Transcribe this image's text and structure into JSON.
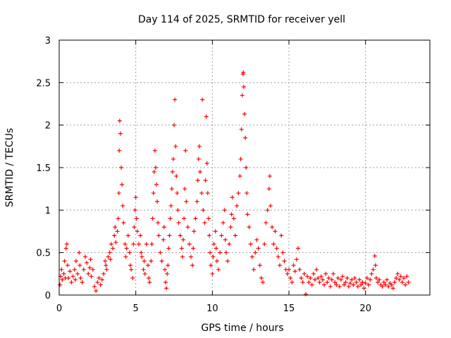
{
  "chart_data": {
    "type": "scatter",
    "title": "Day 114 of 2025, SRMTID for receiver yell",
    "xlabel": "GPS time / hours",
    "ylabel": "SRMTID / TECUs",
    "xlim": [
      0,
      24.2
    ],
    "ylim": [
      0,
      3
    ],
    "xticks": [
      0,
      5,
      10,
      15,
      20
    ],
    "yticks": [
      0,
      0.5,
      1,
      1.5,
      2,
      2.5,
      3
    ],
    "ytick_labels": [
      "0",
      "0.5",
      "1",
      "1.5",
      "2",
      "2.5",
      "3"
    ],
    "grid": true,
    "marker": "+",
    "color": "#ff0000",
    "series": [
      {
        "name": "SRMTID",
        "points": [
          [
            0.05,
            0.12
          ],
          [
            0.1,
            0.22
          ],
          [
            0.15,
            0.3
          ],
          [
            0.2,
            0.18
          ],
          [
            0.3,
            0.25
          ],
          [
            0.35,
            0.4
          ],
          [
            0.4,
            0.2
          ],
          [
            0.45,
            0.55
          ],
          [
            0.5,
            0.6
          ],
          [
            0.55,
            0.35
          ],
          [
            0.6,
            0.2
          ],
          [
            0.7,
            0.28
          ],
          [
            0.8,
            0.15
          ],
          [
            0.9,
            0.22
          ],
          [
            1.0,
            0.3
          ],
          [
            1.05,
            0.18
          ],
          [
            1.1,
            0.4
          ],
          [
            1.2,
            0.25
          ],
          [
            1.3,
            0.5
          ],
          [
            1.35,
            0.35
          ],
          [
            1.4,
            0.2
          ],
          [
            1.5,
            0.15
          ],
          [
            1.6,
            0.3
          ],
          [
            1.7,
            0.45
          ],
          [
            1.8,
            0.38
          ],
          [
            1.9,
            0.25
          ],
          [
            2.0,
            0.32
          ],
          [
            2.05,
            0.42
          ],
          [
            2.1,
            0.22
          ],
          [
            2.2,
            0.3
          ],
          [
            2.3,
            0.1
          ],
          [
            2.4,
            0.05
          ],
          [
            2.5,
            0.15
          ],
          [
            2.6,
            0.2
          ],
          [
            2.7,
            0.12
          ],
          [
            2.8,
            0.18
          ],
          [
            2.9,
            0.25
          ],
          [
            3.0,
            0.4
          ],
          [
            3.05,
            0.35
          ],
          [
            3.1,
            0.3
          ],
          [
            3.2,
            0.45
          ],
          [
            3.3,
            0.5
          ],
          [
            3.35,
            0.42
          ],
          [
            3.4,
            0.6
          ],
          [
            3.5,
            0.55
          ],
          [
            3.6,
            0.7
          ],
          [
            3.65,
            0.8
          ],
          [
            3.7,
            0.62
          ],
          [
            3.8,
            0.75
          ],
          [
            3.85,
            0.9
          ],
          [
            3.9,
            1.2
          ],
          [
            3.92,
            1.7
          ],
          [
            3.95,
            2.05
          ],
          [
            4.0,
            1.9
          ],
          [
            4.05,
            1.5
          ],
          [
            4.1,
            1.3
          ],
          [
            4.15,
            1.05
          ],
          [
            4.2,
            0.85
          ],
          [
            4.3,
            0.6
          ],
          [
            4.35,
            0.45
          ],
          [
            4.4,
            0.55
          ],
          [
            4.5,
            0.7
          ],
          [
            4.6,
            0.5
          ],
          [
            4.65,
            0.35
          ],
          [
            4.7,
            0.3
          ],
          [
            4.8,
            0.2
          ],
          [
            4.85,
            0.6
          ],
          [
            4.9,
            0.8
          ],
          [
            4.95,
            1.0
          ],
          [
            5.0,
            1.15
          ],
          [
            5.05,
            0.9
          ],
          [
            5.1,
            0.75
          ],
          [
            5.2,
            0.6
          ],
          [
            5.3,
            0.7
          ],
          [
            5.35,
            0.5
          ],
          [
            5.4,
            0.45
          ],
          [
            5.5,
            0.3
          ],
          [
            5.55,
            0.4
          ],
          [
            5.6,
            0.25
          ],
          [
            5.7,
            0.6
          ],
          [
            5.8,
            0.35
          ],
          [
            5.85,
            0.2
          ],
          [
            5.9,
            0.15
          ],
          [
            6.0,
            0.4
          ],
          [
            6.05,
            0.6
          ],
          [
            6.1,
            0.9
          ],
          [
            6.15,
            1.2
          ],
          [
            6.2,
            1.45
          ],
          [
            6.25,
            1.7
          ],
          [
            6.3,
            1.5
          ],
          [
            6.35,
            1.3
          ],
          [
            6.4,
            1.1
          ],
          [
            6.45,
            0.85
          ],
          [
            6.5,
            0.7
          ],
          [
            6.6,
            0.5
          ],
          [
            6.7,
            0.4
          ],
          [
            6.8,
            0.65
          ],
          [
            6.85,
            0.8
          ],
          [
            6.9,
            0.3
          ],
          [
            6.95,
            0.15
          ],
          [
            7.0,
            0.08
          ],
          [
            7.05,
            0.25
          ],
          [
            7.1,
            0.35
          ],
          [
            7.15,
            0.55
          ],
          [
            7.2,
            0.7
          ],
          [
            7.25,
            0.9
          ],
          [
            7.3,
            1.05
          ],
          [
            7.35,
            1.25
          ],
          [
            7.4,
            1.45
          ],
          [
            7.45,
            1.6
          ],
          [
            7.5,
            2.0
          ],
          [
            7.55,
            2.3
          ],
          [
            7.6,
            1.75
          ],
          [
            7.65,
            1.4
          ],
          [
            7.7,
            1.2
          ],
          [
            7.75,
            1.0
          ],
          [
            7.8,
            0.85
          ],
          [
            7.9,
            0.7
          ],
          [
            8.0,
            0.55
          ],
          [
            8.05,
            0.45
          ],
          [
            8.1,
            0.65
          ],
          [
            8.15,
            0.9
          ],
          [
            8.2,
            1.25
          ],
          [
            8.25,
            1.7
          ],
          [
            8.3,
            1.1
          ],
          [
            8.4,
            0.8
          ],
          [
            8.5,
            0.6
          ],
          [
            8.6,
            0.45
          ],
          [
            8.7,
            0.35
          ],
          [
            8.75,
            0.55
          ],
          [
            8.8,
            0.75
          ],
          [
            8.9,
            0.9
          ],
          [
            9.0,
            1.1
          ],
          [
            9.05,
            1.35
          ],
          [
            9.1,
            1.6
          ],
          [
            9.15,
            1.75
          ],
          [
            9.2,
            1.45
          ],
          [
            9.3,
            1.2
          ],
          [
            9.35,
            2.3
          ],
          [
            9.4,
            1.0
          ],
          [
            9.5,
            0.85
          ],
          [
            9.55,
            1.35
          ],
          [
            9.6,
            2.1
          ],
          [
            9.65,
            1.55
          ],
          [
            9.7,
            1.2
          ],
          [
            9.75,
            0.9
          ],
          [
            9.8,
            0.7
          ],
          [
            9.85,
            0.5
          ],
          [
            9.9,
            0.35
          ],
          [
            10.0,
            0.25
          ],
          [
            10.05,
            0.45
          ],
          [
            10.1,
            0.6
          ],
          [
            10.2,
            0.75
          ],
          [
            10.25,
            0.55
          ],
          [
            10.3,
            0.4
          ],
          [
            10.4,
            0.3
          ],
          [
            10.5,
            0.5
          ],
          [
            10.6,
            0.7
          ],
          [
            10.7,
            0.85
          ],
          [
            10.8,
            1.0
          ],
          [
            10.85,
            0.65
          ],
          [
            10.9,
            0.5
          ],
          [
            11.0,
            0.4
          ],
          [
            11.1,
            0.6
          ],
          [
            11.2,
            0.8
          ],
          [
            11.25,
            0.95
          ],
          [
            11.3,
            1.15
          ],
          [
            11.4,
            0.9
          ],
          [
            11.5,
            0.7
          ],
          [
            11.6,
            1.05
          ],
          [
            11.7,
            1.2
          ],
          [
            11.8,
            1.4
          ],
          [
            11.85,
            1.6
          ],
          [
            11.9,
            1.95
          ],
          [
            11.95,
            2.35
          ],
          [
            12.0,
            2.6
          ],
          [
            12.02,
            2.62
          ],
          [
            12.05,
            2.45
          ],
          [
            12.1,
            2.13
          ],
          [
            12.15,
            1.85
          ],
          [
            12.2,
            1.5
          ],
          [
            12.25,
            1.2
          ],
          [
            12.3,
            0.95
          ],
          [
            12.4,
            0.8
          ],
          [
            12.5,
            0.6
          ],
          [
            12.6,
            0.45
          ],
          [
            12.7,
            0.3
          ],
          [
            12.8,
            0.5
          ],
          [
            12.9,
            0.65
          ],
          [
            13.0,
            0.55
          ],
          [
            13.1,
            0.35
          ],
          [
            13.2,
            0.2
          ],
          [
            13.3,
            0.15
          ],
          [
            13.4,
            0.6
          ],
          [
            13.5,
            0.85
          ],
          [
            13.6,
            1.0
          ],
          [
            13.7,
            1.25
          ],
          [
            13.75,
            1.4
          ],
          [
            13.8,
            1.05
          ],
          [
            13.9,
            0.8
          ],
          [
            14.0,
            0.6
          ],
          [
            14.1,
            0.75
          ],
          [
            14.2,
            0.55
          ],
          [
            14.3,
            0.45
          ],
          [
            14.4,
            0.35
          ],
          [
            14.5,
            0.7
          ],
          [
            14.6,
            0.5
          ],
          [
            14.7,
            0.4
          ],
          [
            14.8,
            0.3
          ],
          [
            14.9,
            0.25
          ],
          [
            15.0,
            0.3
          ],
          [
            15.1,
            0.2
          ],
          [
            15.2,
            0.15
          ],
          [
            15.3,
            0.35
          ],
          [
            15.4,
            0.28
          ],
          [
            15.5,
            0.42
          ],
          [
            15.6,
            0.55
          ],
          [
            15.7,
            0.3
          ],
          [
            15.8,
            0.2
          ],
          [
            15.9,
            0.15
          ],
          [
            16.0,
            0.25
          ],
          [
            16.1,
            0.01
          ],
          [
            16.2,
            0.22
          ],
          [
            16.3,
            0.15
          ],
          [
            16.4,
            0.2
          ],
          [
            16.5,
            0.12
          ],
          [
            16.6,
            0.25
          ],
          [
            16.7,
            0.18
          ],
          [
            16.8,
            0.3
          ],
          [
            16.9,
            0.2
          ],
          [
            17.0,
            0.15
          ],
          [
            17.1,
            0.22
          ],
          [
            17.2,
            0.18
          ],
          [
            17.3,
            0.12
          ],
          [
            17.4,
            0.25
          ],
          [
            17.5,
            0.15
          ],
          [
            17.6,
            0.2
          ],
          [
            17.7,
            0.1
          ],
          [
            17.8,
            0.18
          ],
          [
            17.9,
            0.25
          ],
          [
            18.0,
            0.15
          ],
          [
            18.1,
            0.12
          ],
          [
            18.2,
            0.2
          ],
          [
            18.3,
            0.1
          ],
          [
            18.4,
            0.18
          ],
          [
            18.5,
            0.22
          ],
          [
            18.6,
            0.12
          ],
          [
            18.7,
            0.15
          ],
          [
            18.8,
            0.2
          ],
          [
            18.9,
            0.1
          ],
          [
            19.0,
            0.14
          ],
          [
            19.1,
            0.18
          ],
          [
            19.2,
            0.12
          ],
          [
            19.3,
            0.2
          ],
          [
            19.4,
            0.15
          ],
          [
            19.5,
            0.1
          ],
          [
            19.6,
            0.18
          ],
          [
            19.7,
            0.12
          ],
          [
            19.8,
            0.15
          ],
          [
            19.9,
            0.08
          ],
          [
            20.0,
            0.14
          ],
          [
            20.1,
            0.2
          ],
          [
            20.2,
            0.12
          ],
          [
            20.3,
            0.18
          ],
          [
            20.4,
            0.25
          ],
          [
            20.5,
            0.3
          ],
          [
            20.6,
            0.46
          ],
          [
            20.65,
            0.35
          ],
          [
            20.7,
            0.2
          ],
          [
            20.8,
            0.15
          ],
          [
            20.9,
            0.18
          ],
          [
            21.0,
            0.12
          ],
          [
            21.1,
            0.1
          ],
          [
            21.2,
            0.15
          ],
          [
            21.3,
            0.12
          ],
          [
            21.4,
            0.18
          ],
          [
            21.5,
            0.1
          ],
          [
            21.6,
            0.14
          ],
          [
            21.7,
            0.12
          ],
          [
            21.8,
            0.08
          ],
          [
            21.9,
            0.15
          ],
          [
            22.0,
            0.2
          ],
          [
            22.1,
            0.25
          ],
          [
            22.2,
            0.18
          ],
          [
            22.3,
            0.22
          ],
          [
            22.4,
            0.15
          ],
          [
            22.5,
            0.2
          ],
          [
            22.6,
            0.12
          ],
          [
            22.7,
            0.22
          ],
          [
            22.8,
            0.15
          ]
        ]
      }
    ]
  }
}
